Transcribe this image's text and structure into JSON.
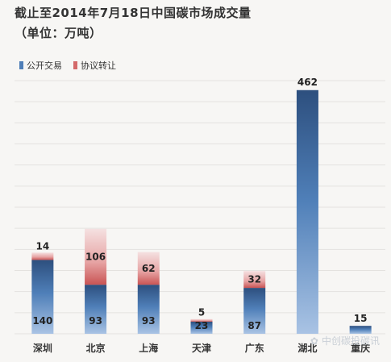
{
  "title_line1": "截止至2014年7月18日中国碳市场成交量",
  "title_line2": "（单位：万吨）",
  "legend": {
    "series1": "公开交易",
    "series2": "协议转让"
  },
  "watermark": "中创碳投碳讯",
  "colors": {
    "blue": "#4f7fb8",
    "blue_dark": "#2d4f7e",
    "blue_light": "#a9c3e4",
    "red": "#d46a6a",
    "red_light": "#f2d6d6",
    "background": "#f7f6f4"
  },
  "chart_data": {
    "type": "bar",
    "stacked": true,
    "categories": [
      "深圳",
      "北京",
      "上海",
      "天津",
      "广东",
      "湖北",
      "重庆"
    ],
    "series": [
      {
        "name": "公开交易",
        "values": [
          140,
          93,
          93,
          23,
          87,
          462,
          15
        ]
      },
      {
        "name": "协议转让",
        "values": [
          14,
          106,
          62,
          5,
          32,
          0,
          0
        ]
      }
    ],
    "ylim": [
      0,
      480
    ],
    "grid": true,
    "legend_position": "top-left"
  }
}
